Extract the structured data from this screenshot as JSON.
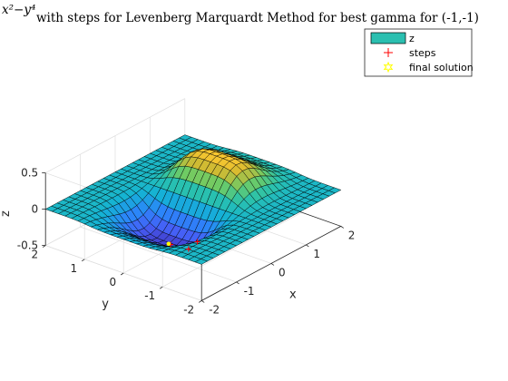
{
  "chart_data": {
    "type": "surface",
    "title_math": "x²−y⁴",
    "title": "with steps for Levenberg Marquardt Method for best gamma for (-1,-1)",
    "xlabel": "x",
    "ylabel": "y",
    "zlabel": "z",
    "xlim": [
      -2,
      2
    ],
    "ylim": [
      -2,
      2
    ],
    "zlim": [
      -0.5,
      0.5
    ],
    "xticks": [
      "-2",
      "-1",
      "0",
      "1",
      "2"
    ],
    "yticks": [
      "-2",
      "-1",
      "0",
      "1",
      "2"
    ],
    "zticks": [
      "-0.5",
      "0",
      "0.5"
    ],
    "grid": true,
    "colormap": "parula",
    "surface": {
      "function": "x*exp(-x^2-y^4)",
      "x_range": [
        -2,
        2
      ],
      "y_range": [
        -2,
        2
      ],
      "resolution": 25
    },
    "series": [
      {
        "name": "z",
        "kind": "surface",
        "color": "#2bbfb0"
      },
      {
        "name": "steps",
        "kind": "points",
        "marker": "+",
        "color": "#ff0000",
        "points": [
          [
            -1,
            -1,
            -0.1353
          ],
          [
            -0.75,
            -0.55,
            -0.3852
          ],
          [
            -0.707,
            -0.05,
            -0.4289
          ]
        ]
      },
      {
        "name": "final solution",
        "kind": "points",
        "marker": "hexagram",
        "color": "#ffff00",
        "points": [
          [
            -0.707,
            0.0,
            -0.4289
          ]
        ]
      }
    ],
    "legend_position": "top-right"
  }
}
